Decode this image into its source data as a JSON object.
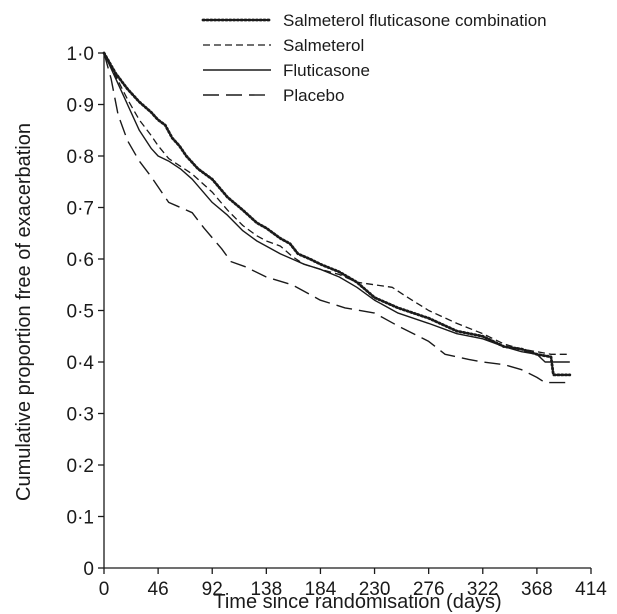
{
  "chart_data": {
    "type": "line",
    "xlabel": "Time since randomisation (days)",
    "ylabel": "Cumulative proportion free of exacerbation",
    "xlim": [
      0,
      414
    ],
    "ylim": [
      0,
      1.0
    ],
    "x_ticks": [
      0,
      46,
      92,
      138,
      184,
      230,
      276,
      322,
      368,
      414
    ],
    "y_ticks": [
      {
        "value": 0,
        "label": "0"
      },
      {
        "value": 0.1,
        "label": "0·1"
      },
      {
        "value": 0.2,
        "label": "0·2"
      },
      {
        "value": 0.3,
        "label": "0·3"
      },
      {
        "value": 0.4,
        "label": "0·4"
      },
      {
        "value": 0.5,
        "label": "0·5"
      },
      {
        "value": 0.6,
        "label": "0·6"
      },
      {
        "value": 0.7,
        "label": "0·7"
      },
      {
        "value": 0.8,
        "label": "0·8"
      },
      {
        "value": 0.9,
        "label": "0·9"
      },
      {
        "value": 1.0,
        "label": "1·0"
      }
    ],
    "grid": false,
    "legend_position": "top-right",
    "series": [
      {
        "name": "Salmeterol fluticasone combination",
        "style": "dotted",
        "points": [
          [
            0,
            1.0
          ],
          [
            10,
            0.96
          ],
          [
            20,
            0.93
          ],
          [
            30,
            0.905
          ],
          [
            40,
            0.885
          ],
          [
            46,
            0.87
          ],
          [
            52,
            0.86
          ],
          [
            58,
            0.835
          ],
          [
            64,
            0.82
          ],
          [
            70,
            0.8
          ],
          [
            80,
            0.775
          ],
          [
            92,
            0.755
          ],
          [
            105,
            0.72
          ],
          [
            118,
            0.695
          ],
          [
            130,
            0.67
          ],
          [
            138,
            0.66
          ],
          [
            150,
            0.64
          ],
          [
            158,
            0.63
          ],
          [
            165,
            0.61
          ],
          [
            175,
            0.6
          ],
          [
            184,
            0.59
          ],
          [
            200,
            0.575
          ],
          [
            215,
            0.555
          ],
          [
            230,
            0.525
          ],
          [
            250,
            0.505
          ],
          [
            276,
            0.485
          ],
          [
            300,
            0.46
          ],
          [
            322,
            0.45
          ],
          [
            340,
            0.43
          ],
          [
            355,
            0.425
          ],
          [
            368,
            0.415
          ],
          [
            380,
            0.41
          ],
          [
            382,
            0.375
          ],
          [
            396,
            0.375
          ]
        ]
      },
      {
        "name": "Salmeterol",
        "style": "dashed",
        "points": [
          [
            0,
            1.0
          ],
          [
            10,
            0.955
          ],
          [
            20,
            0.91
          ],
          [
            30,
            0.87
          ],
          [
            40,
            0.84
          ],
          [
            46,
            0.82
          ],
          [
            55,
            0.795
          ],
          [
            65,
            0.78
          ],
          [
            75,
            0.765
          ],
          [
            92,
            0.73
          ],
          [
            105,
            0.695
          ],
          [
            118,
            0.665
          ],
          [
            130,
            0.645
          ],
          [
            138,
            0.635
          ],
          [
            150,
            0.625
          ],
          [
            160,
            0.605
          ],
          [
            170,
            0.59
          ],
          [
            184,
            0.58
          ],
          [
            200,
            0.57
          ],
          [
            215,
            0.555
          ],
          [
            230,
            0.55
          ],
          [
            245,
            0.545
          ],
          [
            255,
            0.53
          ],
          [
            276,
            0.5
          ],
          [
            300,
            0.475
          ],
          [
            322,
            0.455
          ],
          [
            340,
            0.435
          ],
          [
            355,
            0.425
          ],
          [
            368,
            0.42
          ],
          [
            380,
            0.415
          ],
          [
            396,
            0.415
          ]
        ]
      },
      {
        "name": "Fluticasone",
        "style": "solid",
        "points": [
          [
            0,
            1.0
          ],
          [
            10,
            0.95
          ],
          [
            20,
            0.9
          ],
          [
            30,
            0.85
          ],
          [
            40,
            0.815
          ],
          [
            46,
            0.8
          ],
          [
            55,
            0.79
          ],
          [
            65,
            0.775
          ],
          [
            75,
            0.755
          ],
          [
            92,
            0.71
          ],
          [
            105,
            0.685
          ],
          [
            118,
            0.655
          ],
          [
            130,
            0.635
          ],
          [
            138,
            0.625
          ],
          [
            150,
            0.61
          ],
          [
            160,
            0.6
          ],
          [
            170,
            0.59
          ],
          [
            184,
            0.58
          ],
          [
            200,
            0.565
          ],
          [
            215,
            0.545
          ],
          [
            230,
            0.52
          ],
          [
            250,
            0.495
          ],
          [
            276,
            0.475
          ],
          [
            300,
            0.455
          ],
          [
            322,
            0.445
          ],
          [
            340,
            0.43
          ],
          [
            355,
            0.42
          ],
          [
            368,
            0.415
          ],
          [
            375,
            0.4
          ],
          [
            396,
            0.4
          ]
        ]
      },
      {
        "name": "Placebo",
        "style": "longdash",
        "points": [
          [
            0,
            1.0
          ],
          [
            6,
            0.95
          ],
          [
            12,
            0.88
          ],
          [
            20,
            0.83
          ],
          [
            30,
            0.79
          ],
          [
            40,
            0.76
          ],
          [
            46,
            0.74
          ],
          [
            55,
            0.71
          ],
          [
            65,
            0.7
          ],
          [
            75,
            0.69
          ],
          [
            85,
            0.66
          ],
          [
            100,
            0.62
          ],
          [
            108,
            0.595
          ],
          [
            120,
            0.585
          ],
          [
            138,
            0.565
          ],
          [
            160,
            0.55
          ],
          [
            184,
            0.52
          ],
          [
            205,
            0.505
          ],
          [
            230,
            0.495
          ],
          [
            250,
            0.47
          ],
          [
            276,
            0.44
          ],
          [
            290,
            0.415
          ],
          [
            310,
            0.405
          ],
          [
            322,
            0.4
          ],
          [
            340,
            0.395
          ],
          [
            355,
            0.385
          ],
          [
            368,
            0.37
          ],
          [
            375,
            0.36
          ],
          [
            396,
            0.36
          ]
        ]
      }
    ]
  }
}
